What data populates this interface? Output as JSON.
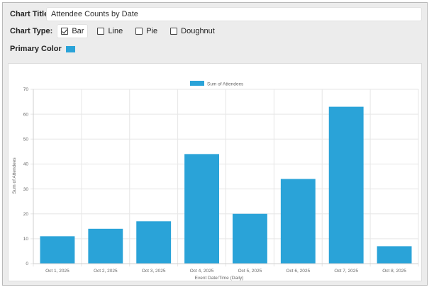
{
  "settings": {
    "title_label": "Chart Title:",
    "title_value": "Attendee Counts by Date",
    "type_label": "Chart Type:",
    "type_options": [
      {
        "label": "Bar",
        "checked": true
      },
      {
        "label": "Line",
        "checked": false
      },
      {
        "label": "Pie",
        "checked": false
      },
      {
        "label": "Doughnut",
        "checked": false
      }
    ],
    "primary_color_label": "Primary Color",
    "primary_color": "#2aa3d8"
  },
  "chart_data": {
    "type": "bar",
    "title": "",
    "xlabel": "Event Date/Time (Daily)",
    "ylabel": "Sum of Attendees",
    "ylim": [
      0,
      70
    ],
    "y_ticks": [
      0,
      10,
      20,
      30,
      40,
      50,
      60,
      70
    ],
    "grid": true,
    "legend_position": "top-center",
    "categories": [
      "Oct 1, 2025",
      "Oct 2, 2025",
      "Oct 3, 2025",
      "Oct 4, 2025",
      "Oct 5, 2025",
      "Oct 6, 2025",
      "Oct 7, 2025",
      "Oct 8, 2025"
    ],
    "series": [
      {
        "name": "Sum of Attendees",
        "color": "#2aa3d8",
        "values": [
          11,
          14,
          17,
          44,
          20,
          34,
          63,
          7
        ]
      }
    ]
  }
}
